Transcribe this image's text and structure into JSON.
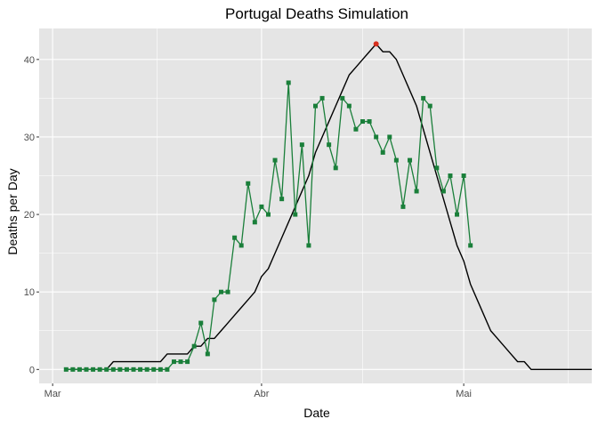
{
  "chart_data": {
    "type": "line",
    "title": "Portugal Deaths Simulation",
    "xlabel": "Date",
    "ylabel": "Deaths per Day",
    "x_axis": {
      "kind": "date",
      "range": [
        "2020-02-28",
        "2020-05-20"
      ],
      "ticks": [
        {
          "date": "2020-03-01",
          "label": "Mar"
        },
        {
          "date": "2020-04-01",
          "label": "Abr"
        },
        {
          "date": "2020-05-01",
          "label": "Mai"
        }
      ]
    },
    "y_axis": {
      "range": [
        -1.8,
        44
      ],
      "ticks": [
        0,
        10,
        20,
        30,
        40
      ]
    },
    "grid": true,
    "legend": "none",
    "colors": {
      "panel": "#e5e5e5",
      "grid": "#ffffff",
      "observed": "#1a7f3a",
      "simulated": "#000000",
      "peak": "#d7301f"
    },
    "series": [
      {
        "role": "simulated",
        "marker": "none",
        "points": [
          [
            "2020-03-03",
            0
          ],
          [
            "2020-03-04",
            0
          ],
          [
            "2020-03-05",
            0
          ],
          [
            "2020-03-06",
            0
          ],
          [
            "2020-03-07",
            0
          ],
          [
            "2020-03-08",
            0
          ],
          [
            "2020-03-09",
            0
          ],
          [
            "2020-03-10",
            1
          ],
          [
            "2020-03-11",
            1
          ],
          [
            "2020-03-12",
            1
          ],
          [
            "2020-03-13",
            1
          ],
          [
            "2020-03-14",
            1
          ],
          [
            "2020-03-15",
            1
          ],
          [
            "2020-03-16",
            1
          ],
          [
            "2020-03-17",
            1
          ],
          [
            "2020-03-18",
            2
          ],
          [
            "2020-03-19",
            2
          ],
          [
            "2020-03-20",
            2
          ],
          [
            "2020-03-21",
            2
          ],
          [
            "2020-03-22",
            3
          ],
          [
            "2020-03-23",
            3
          ],
          [
            "2020-03-24",
            4
          ],
          [
            "2020-03-25",
            4
          ],
          [
            "2020-03-26",
            5
          ],
          [
            "2020-03-27",
            6
          ],
          [
            "2020-03-28",
            7
          ],
          [
            "2020-03-29",
            8
          ],
          [
            "2020-03-30",
            9
          ],
          [
            "2020-03-31",
            10
          ],
          [
            "2020-04-01",
            12
          ],
          [
            "2020-04-02",
            13
          ],
          [
            "2020-04-03",
            15
          ],
          [
            "2020-04-04",
            17
          ],
          [
            "2020-04-05",
            19
          ],
          [
            "2020-04-06",
            21
          ],
          [
            "2020-04-07",
            23
          ],
          [
            "2020-04-08",
            25
          ],
          [
            "2020-04-09",
            28
          ],
          [
            "2020-04-10",
            30
          ],
          [
            "2020-04-11",
            32
          ],
          [
            "2020-04-12",
            34
          ],
          [
            "2020-04-13",
            36
          ],
          [
            "2020-04-14",
            38
          ],
          [
            "2020-04-15",
            39
          ],
          [
            "2020-04-16",
            40
          ],
          [
            "2020-04-17",
            41
          ],
          [
            "2020-04-18",
            42
          ],
          [
            "2020-04-19",
            41
          ],
          [
            "2020-04-20",
            41
          ],
          [
            "2020-04-21",
            40
          ],
          [
            "2020-04-22",
            38
          ],
          [
            "2020-04-23",
            36
          ],
          [
            "2020-04-24",
            34
          ],
          [
            "2020-04-25",
            31
          ],
          [
            "2020-04-26",
            28
          ],
          [
            "2020-04-27",
            25
          ],
          [
            "2020-04-28",
            22
          ],
          [
            "2020-04-29",
            19
          ],
          [
            "2020-04-30",
            16
          ],
          [
            "2020-05-01",
            14
          ],
          [
            "2020-05-02",
            11
          ],
          [
            "2020-05-03",
            9
          ],
          [
            "2020-05-04",
            7
          ],
          [
            "2020-05-05",
            5
          ],
          [
            "2020-05-06",
            4
          ],
          [
            "2020-05-07",
            3
          ],
          [
            "2020-05-08",
            2
          ],
          [
            "2020-05-09",
            1
          ],
          [
            "2020-05-10",
            1
          ],
          [
            "2020-05-11",
            0
          ],
          [
            "2020-05-12",
            0
          ],
          [
            "2020-05-13",
            0
          ],
          [
            "2020-05-14",
            0
          ],
          [
            "2020-05-15",
            0
          ],
          [
            "2020-05-16",
            0
          ],
          [
            "2020-05-17",
            0
          ],
          [
            "2020-05-18",
            0
          ],
          [
            "2020-05-19",
            0
          ],
          [
            "2020-05-20",
            0
          ]
        ]
      },
      {
        "role": "observed",
        "marker": "square",
        "points": [
          [
            "2020-03-03",
            0
          ],
          [
            "2020-03-04",
            0
          ],
          [
            "2020-03-05",
            0
          ],
          [
            "2020-03-06",
            0
          ],
          [
            "2020-03-07",
            0
          ],
          [
            "2020-03-08",
            0
          ],
          [
            "2020-03-09",
            0
          ],
          [
            "2020-03-10",
            0
          ],
          [
            "2020-03-11",
            0
          ],
          [
            "2020-03-12",
            0
          ],
          [
            "2020-03-13",
            0
          ],
          [
            "2020-03-14",
            0
          ],
          [
            "2020-03-15",
            0
          ],
          [
            "2020-03-16",
            0
          ],
          [
            "2020-03-17",
            0
          ],
          [
            "2020-03-18",
            0
          ],
          [
            "2020-03-19",
            1
          ],
          [
            "2020-03-20",
            1
          ],
          [
            "2020-03-21",
            1
          ],
          [
            "2020-03-22",
            3
          ],
          [
            "2020-03-23",
            6
          ],
          [
            "2020-03-24",
            2
          ],
          [
            "2020-03-25",
            9
          ],
          [
            "2020-03-26",
            10
          ],
          [
            "2020-03-27",
            10
          ],
          [
            "2020-03-28",
            17
          ],
          [
            "2020-03-29",
            16
          ],
          [
            "2020-03-30",
            24
          ],
          [
            "2020-03-31",
            19
          ],
          [
            "2020-04-01",
            21
          ],
          [
            "2020-04-02",
            20
          ],
          [
            "2020-04-03",
            27
          ],
          [
            "2020-04-04",
            22
          ],
          [
            "2020-04-05",
            37
          ],
          [
            "2020-04-06",
            20
          ],
          [
            "2020-04-07",
            29
          ],
          [
            "2020-04-08",
            16
          ],
          [
            "2020-04-09",
            34
          ],
          [
            "2020-04-10",
            35
          ],
          [
            "2020-04-11",
            29
          ],
          [
            "2020-04-12",
            26
          ],
          [
            "2020-04-13",
            35
          ],
          [
            "2020-04-14",
            34
          ],
          [
            "2020-04-15",
            31
          ],
          [
            "2020-04-16",
            32
          ],
          [
            "2020-04-17",
            32
          ],
          [
            "2020-04-18",
            30
          ],
          [
            "2020-04-19",
            28
          ],
          [
            "2020-04-20",
            30
          ],
          [
            "2020-04-21",
            27
          ],
          [
            "2020-04-22",
            21
          ],
          [
            "2020-04-23",
            27
          ],
          [
            "2020-04-24",
            23
          ],
          [
            "2020-04-25",
            35
          ],
          [
            "2020-04-26",
            34
          ],
          [
            "2020-04-27",
            26
          ],
          [
            "2020-04-28",
            23
          ],
          [
            "2020-04-29",
            25
          ],
          [
            "2020-04-30",
            20
          ],
          [
            "2020-05-01",
            25
          ],
          [
            "2020-05-02",
            16
          ]
        ]
      }
    ],
    "peak_marker": {
      "date": "2020-04-18",
      "value": 42
    }
  }
}
